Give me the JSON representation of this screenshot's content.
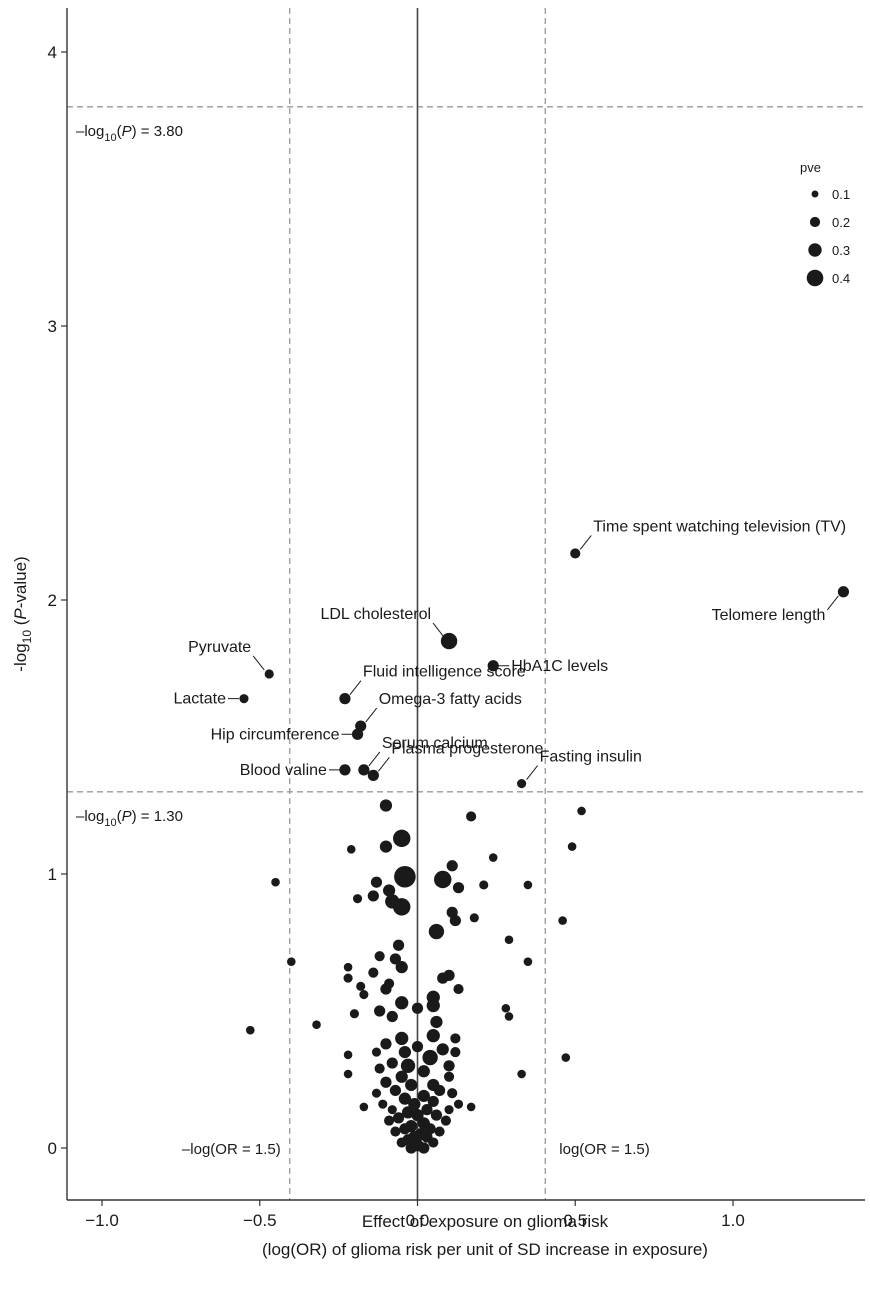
{
  "chart_data": {
    "type": "scatter",
    "title": "",
    "xlabel": "Effect of exposure on glioma risk",
    "xlabel_line2": "(log(OR) of glioma risk per unit of SD increase in exposure)",
    "ylabel_prefix": "-log",
    "ylabel_sub": "10",
    "ylabel_mid": " (",
    "ylabel_italic": "P",
    "ylabel_suffix": "-value)",
    "xlim": [
      -1.1,
      1.4
    ],
    "ylim": [
      -0.15,
      4.2
    ],
    "xticks": [
      {
        "value": -1.0,
        "label": "−1.0"
      },
      {
        "value": -0.5,
        "label": "−0.5"
      },
      {
        "value": 0.0,
        "label": "0.0"
      },
      {
        "value": 0.5,
        "label": "0.5"
      },
      {
        "value": 1.0,
        "label": "1.0"
      }
    ],
    "yticks": [
      {
        "value": 0,
        "label": "0"
      },
      {
        "value": 1,
        "label": "1"
      },
      {
        "value": 2,
        "label": "2"
      },
      {
        "value": 3,
        "label": "3"
      },
      {
        "value": 4,
        "label": "4"
      }
    ],
    "grid": false,
    "reference_lines": {
      "hlines": [
        {
          "y": 3.8,
          "label_prefix": "–log",
          "label_sub": "10",
          "label_open": "(",
          "label_italic": "P",
          "label_close": ") = 3.80"
        },
        {
          "y": 1.3,
          "label_prefix": "–log",
          "label_sub": "10",
          "label_open": "(",
          "label_italic": "P",
          "label_close": ") = 1.30"
        }
      ],
      "vlines": [
        {
          "x": -0.405,
          "label": "–log(OR = 1.5)"
        },
        {
          "x": 0.405,
          "label": "log(OR = 1.5)"
        }
      ],
      "zero_line_x": 0
    },
    "legend": {
      "title": "pve",
      "position": "top-right",
      "entries": [
        {
          "pve": 0.1,
          "label": "0.1"
        },
        {
          "pve": 0.2,
          "label": "0.2"
        },
        {
          "pve": 0.3,
          "label": "0.3"
        },
        {
          "pve": 0.4,
          "label": "0.4"
        }
      ]
    },
    "labeled_points": [
      {
        "x": 0.5,
        "y": 2.17,
        "pve": 0.08,
        "label": "Time spent watching television (TV)",
        "anchor": "above-right"
      },
      {
        "x": 1.35,
        "y": 2.03,
        "pve": 0.1,
        "label": "Telomere length",
        "anchor": "left-below"
      },
      {
        "x": 0.1,
        "y": 1.85,
        "pve": 0.2,
        "label": "LDL cholesterol",
        "anchor": "above-left"
      },
      {
        "x": -0.47,
        "y": 1.73,
        "pve": 0.06,
        "label": "Pyruvate",
        "anchor": "above-left"
      },
      {
        "x": -0.23,
        "y": 1.64,
        "pve": 0.1,
        "label": "Fluid intelligence score",
        "anchor": "above-right"
      },
      {
        "x": 0.24,
        "y": 1.76,
        "pve": 0.1,
        "label": "HbA1C levels",
        "anchor": "right"
      },
      {
        "x": -0.55,
        "y": 1.64,
        "pve": 0.06,
        "label": "Lactate",
        "anchor": "left"
      },
      {
        "x": -0.18,
        "y": 1.54,
        "pve": 0.1,
        "label": "Omega-3 fatty acids",
        "anchor": "above-right"
      },
      {
        "x": -0.19,
        "y": 1.51,
        "pve": 0.1,
        "label": "Hip circumference",
        "anchor": "left"
      },
      {
        "x": -0.17,
        "y": 1.38,
        "pve": 0.1,
        "label": "Serum calcium",
        "anchor": "above-right"
      },
      {
        "x": -0.23,
        "y": 1.38,
        "pve": 0.1,
        "label": "Blood valine",
        "anchor": "left"
      },
      {
        "x": -0.14,
        "y": 1.36,
        "pve": 0.1,
        "label": "Plasma progesterone",
        "anchor": "above-right"
      },
      {
        "x": 0.33,
        "y": 1.33,
        "pve": 0.06,
        "label": "Fasting insulin",
        "anchor": "above-right"
      }
    ],
    "points": [
      {
        "x": -0.1,
        "y": 1.25,
        "pve": 0.12
      },
      {
        "x": 0.52,
        "y": 1.23,
        "pve": 0.05
      },
      {
        "x": 0.17,
        "y": 1.21,
        "pve": 0.08
      },
      {
        "x": -0.05,
        "y": 1.13,
        "pve": 0.22
      },
      {
        "x": -0.1,
        "y": 1.1,
        "pve": 0.12
      },
      {
        "x": 0.49,
        "y": 1.1,
        "pve": 0.05
      },
      {
        "x": -0.21,
        "y": 1.09,
        "pve": 0.05
      },
      {
        "x": 0.24,
        "y": 1.06,
        "pve": 0.05
      },
      {
        "x": 0.11,
        "y": 1.03,
        "pve": 0.1
      },
      {
        "x": -0.04,
        "y": 0.99,
        "pve": 0.3
      },
      {
        "x": 0.08,
        "y": 0.98,
        "pve": 0.22
      },
      {
        "x": -0.13,
        "y": 0.97,
        "pve": 0.1
      },
      {
        "x": 0.35,
        "y": 0.96,
        "pve": 0.05
      },
      {
        "x": -0.45,
        "y": 0.97,
        "pve": 0.05
      },
      {
        "x": 0.13,
        "y": 0.95,
        "pve": 0.1
      },
      {
        "x": -0.09,
        "y": 0.94,
        "pve": 0.12
      },
      {
        "x": 0.21,
        "y": 0.96,
        "pve": 0.06
      },
      {
        "x": -0.14,
        "y": 0.92,
        "pve": 0.1
      },
      {
        "x": -0.19,
        "y": 0.91,
        "pve": 0.06
      },
      {
        "x": -0.08,
        "y": 0.9,
        "pve": 0.16
      },
      {
        "x": -0.05,
        "y": 0.88,
        "pve": 0.22
      },
      {
        "x": 0.11,
        "y": 0.86,
        "pve": 0.1
      },
      {
        "x": 0.18,
        "y": 0.84,
        "pve": 0.06
      },
      {
        "x": 0.12,
        "y": 0.83,
        "pve": 0.1
      },
      {
        "x": 0.46,
        "y": 0.83,
        "pve": 0.05
      },
      {
        "x": 0.06,
        "y": 0.79,
        "pve": 0.18
      },
      {
        "x": 0.29,
        "y": 0.76,
        "pve": 0.05
      },
      {
        "x": -0.06,
        "y": 0.74,
        "pve": 0.1
      },
      {
        "x": -0.12,
        "y": 0.7,
        "pve": 0.08
      },
      {
        "x": -0.07,
        "y": 0.69,
        "pve": 0.1
      },
      {
        "x": 0.35,
        "y": 0.68,
        "pve": 0.05
      },
      {
        "x": -0.4,
        "y": 0.68,
        "pve": 0.05
      },
      {
        "x": -0.05,
        "y": 0.66,
        "pve": 0.12
      },
      {
        "x": -0.22,
        "y": 0.66,
        "pve": 0.05
      },
      {
        "x": -0.14,
        "y": 0.64,
        "pve": 0.08
      },
      {
        "x": 0.1,
        "y": 0.63,
        "pve": 0.1
      },
      {
        "x": 0.08,
        "y": 0.62,
        "pve": 0.1
      },
      {
        "x": -0.22,
        "y": 0.62,
        "pve": 0.06
      },
      {
        "x": -0.09,
        "y": 0.6,
        "pve": 0.08
      },
      {
        "x": -0.18,
        "y": 0.59,
        "pve": 0.06
      },
      {
        "x": -0.1,
        "y": 0.58,
        "pve": 0.1
      },
      {
        "x": 0.13,
        "y": 0.58,
        "pve": 0.08
      },
      {
        "x": -0.17,
        "y": 0.56,
        "pve": 0.06
      },
      {
        "x": 0.05,
        "y": 0.55,
        "pve": 0.14
      },
      {
        "x": -0.05,
        "y": 0.53,
        "pve": 0.14
      },
      {
        "x": 0.0,
        "y": 0.51,
        "pve": 0.1
      },
      {
        "x": 0.05,
        "y": 0.52,
        "pve": 0.14
      },
      {
        "x": 0.28,
        "y": 0.51,
        "pve": 0.05
      },
      {
        "x": -0.12,
        "y": 0.5,
        "pve": 0.1
      },
      {
        "x": -0.08,
        "y": 0.48,
        "pve": 0.1
      },
      {
        "x": 0.29,
        "y": 0.48,
        "pve": 0.05
      },
      {
        "x": 0.06,
        "y": 0.46,
        "pve": 0.12
      },
      {
        "x": -0.2,
        "y": 0.49,
        "pve": 0.06
      },
      {
        "x": -0.32,
        "y": 0.45,
        "pve": 0.05
      },
      {
        "x": -0.53,
        "y": 0.43,
        "pve": 0.05
      },
      {
        "x": 0.05,
        "y": 0.41,
        "pve": 0.14
      },
      {
        "x": -0.05,
        "y": 0.4,
        "pve": 0.14
      },
      {
        "x": 0.12,
        "y": 0.4,
        "pve": 0.08
      },
      {
        "x": -0.1,
        "y": 0.38,
        "pve": 0.1
      },
      {
        "x": 0.0,
        "y": 0.37,
        "pve": 0.1
      },
      {
        "x": 0.08,
        "y": 0.36,
        "pve": 0.12
      },
      {
        "x": -0.04,
        "y": 0.35,
        "pve": 0.12
      },
      {
        "x": -0.13,
        "y": 0.35,
        "pve": 0.06
      },
      {
        "x": 0.12,
        "y": 0.35,
        "pve": 0.08
      },
      {
        "x": -0.22,
        "y": 0.34,
        "pve": 0.05
      },
      {
        "x": 0.47,
        "y": 0.33,
        "pve": 0.05
      },
      {
        "x": 0.04,
        "y": 0.33,
        "pve": 0.18
      },
      {
        "x": -0.08,
        "y": 0.31,
        "pve": 0.1
      },
      {
        "x": -0.03,
        "y": 0.3,
        "pve": 0.16
      },
      {
        "x": 0.1,
        "y": 0.3,
        "pve": 0.1
      },
      {
        "x": -0.12,
        "y": 0.29,
        "pve": 0.08
      },
      {
        "x": 0.02,
        "y": 0.28,
        "pve": 0.12
      },
      {
        "x": 0.33,
        "y": 0.27,
        "pve": 0.05
      },
      {
        "x": -0.22,
        "y": 0.27,
        "pve": 0.05
      },
      {
        "x": -0.05,
        "y": 0.26,
        "pve": 0.12
      },
      {
        "x": 0.1,
        "y": 0.26,
        "pve": 0.08
      },
      {
        "x": -0.1,
        "y": 0.24,
        "pve": 0.1
      },
      {
        "x": 0.05,
        "y": 0.23,
        "pve": 0.12
      },
      {
        "x": -0.02,
        "y": 0.23,
        "pve": 0.12
      },
      {
        "x": 0.07,
        "y": 0.21,
        "pve": 0.1
      },
      {
        "x": -0.07,
        "y": 0.21,
        "pve": 0.1
      },
      {
        "x": 0.11,
        "y": 0.2,
        "pve": 0.08
      },
      {
        "x": -0.13,
        "y": 0.2,
        "pve": 0.06
      },
      {
        "x": 0.02,
        "y": 0.19,
        "pve": 0.12
      },
      {
        "x": -0.04,
        "y": 0.18,
        "pve": 0.12
      },
      {
        "x": 0.05,
        "y": 0.17,
        "pve": 0.1
      },
      {
        "x": -0.01,
        "y": 0.16,
        "pve": 0.12
      },
      {
        "x": 0.13,
        "y": 0.16,
        "pve": 0.06
      },
      {
        "x": 0.17,
        "y": 0.15,
        "pve": 0.05
      },
      {
        "x": -0.17,
        "y": 0.15,
        "pve": 0.05
      },
      {
        "x": 0.03,
        "y": 0.14,
        "pve": 0.1
      },
      {
        "x": -0.03,
        "y": 0.13,
        "pve": 0.12
      },
      {
        "x": 0.0,
        "y": 0.12,
        "pve": 0.12
      },
      {
        "x": 0.06,
        "y": 0.12,
        "pve": 0.1
      },
      {
        "x": -0.06,
        "y": 0.11,
        "pve": 0.1
      },
      {
        "x": 0.09,
        "y": 0.1,
        "pve": 0.08
      },
      {
        "x": -0.09,
        "y": 0.1,
        "pve": 0.08
      },
      {
        "x": 0.02,
        "y": 0.09,
        "pve": 0.12
      },
      {
        "x": -0.02,
        "y": 0.08,
        "pve": 0.12
      },
      {
        "x": 0.04,
        "y": 0.07,
        "pve": 0.1
      },
      {
        "x": -0.04,
        "y": 0.07,
        "pve": 0.1
      },
      {
        "x": 0.07,
        "y": 0.06,
        "pve": 0.08
      },
      {
        "x": -0.07,
        "y": 0.06,
        "pve": 0.08
      },
      {
        "x": 0.01,
        "y": 0.05,
        "pve": 0.12
      },
      {
        "x": -0.01,
        "y": 0.04,
        "pve": 0.12
      },
      {
        "x": 0.03,
        "y": 0.04,
        "pve": 0.1
      },
      {
        "x": -0.03,
        "y": 0.03,
        "pve": 0.1
      },
      {
        "x": 0.05,
        "y": 0.02,
        "pve": 0.08
      },
      {
        "x": -0.05,
        "y": 0.02,
        "pve": 0.08
      },
      {
        "x": 0.0,
        "y": 0.01,
        "pve": 0.12
      },
      {
        "x": 0.02,
        "y": 0.0,
        "pve": 0.1
      },
      {
        "x": -0.02,
        "y": 0.0,
        "pve": 0.1
      },
      {
        "x": -0.08,
        "y": 0.14,
        "pve": 0.06
      },
      {
        "x": 0.1,
        "y": 0.14,
        "pve": 0.06
      },
      {
        "x": -0.11,
        "y": 0.16,
        "pve": 0.06
      }
    ],
    "colors": {
      "point": "#1a1a1a",
      "reference_line": "#999999",
      "axis": "#333333"
    }
  }
}
